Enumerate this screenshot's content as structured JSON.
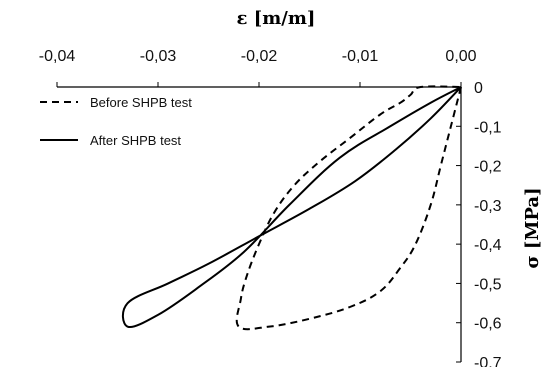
{
  "chart_data": {
    "type": "line",
    "title": "",
    "xlabel": "ε [m/m]",
    "ylabel": "σ [MPa]",
    "xlim": [
      -0.04,
      0.0
    ],
    "ylim": [
      -0.7,
      0.0
    ],
    "x_ticks": [
      "-0,04",
      "-0,03",
      "-0,02",
      "-0,01",
      "0,00"
    ],
    "y_ticks": [
      "0",
      "-0,1",
      "-0,2",
      "-0,3",
      "-0,4",
      "-0,5",
      "-0,6",
      "-0,7"
    ],
    "x_axis_position": "top",
    "y_axis_position": "right",
    "grid": false,
    "legend_position": "top-left",
    "series": [
      {
        "name": "Before SHPB test",
        "style": "dashed",
        "color": "#000000",
        "x": [
          0.0,
          -0.001,
          -0.002,
          -0.003,
          -0.0045,
          -0.006,
          -0.008,
          -0.011,
          -0.015,
          -0.019,
          -0.022,
          -0.0218,
          -0.0212,
          -0.02,
          -0.0185,
          -0.0165,
          -0.014,
          -0.011,
          -0.008,
          -0.006,
          -0.005,
          -0.004,
          0.0
        ],
        "y": [
          0.0,
          -0.1,
          -0.2,
          -0.3,
          -0.4,
          -0.46,
          -0.52,
          -0.56,
          -0.59,
          -0.61,
          -0.61,
          -0.54,
          -0.48,
          -0.4,
          -0.32,
          -0.25,
          -0.19,
          -0.13,
          -0.07,
          -0.04,
          -0.02,
          0.0,
          0.0
        ]
      },
      {
        "name": "After SHPB test",
        "style": "solid",
        "color": "#000000",
        "x": [
          0.0,
          -0.003,
          -0.0065,
          -0.0105,
          -0.015,
          -0.02,
          -0.025,
          -0.029,
          -0.033,
          -0.033,
          -0.03,
          -0.026,
          -0.0215,
          -0.017,
          -0.012,
          -0.007,
          -0.003,
          0.0
        ],
        "y": [
          0.0,
          -0.08,
          -0.16,
          -0.24,
          -0.31,
          -0.38,
          -0.45,
          -0.5,
          -0.55,
          -0.61,
          -0.58,
          -0.51,
          -0.42,
          -0.3,
          -0.18,
          -0.1,
          -0.04,
          0.0
        ]
      }
    ]
  }
}
